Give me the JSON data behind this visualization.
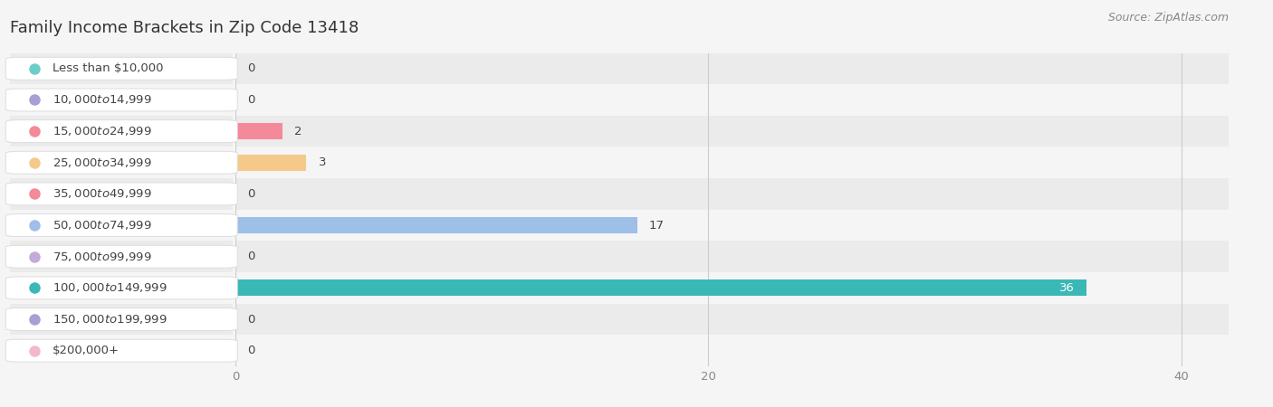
{
  "title": "Family Income Brackets in Zip Code 13418",
  "source_text": "Source: ZipAtlas.com",
  "categories": [
    "Less than $10,000",
    "$10,000 to $14,999",
    "$15,000 to $24,999",
    "$25,000 to $34,999",
    "$35,000 to $49,999",
    "$50,000 to $74,999",
    "$75,000 to $99,999",
    "$100,000 to $149,999",
    "$150,000 to $199,999",
    "$200,000+"
  ],
  "values": [
    0,
    0,
    2,
    3,
    0,
    17,
    0,
    36,
    0,
    0
  ],
  "bar_colors": [
    "#6dcdc8",
    "#a89fd4",
    "#f4899a",
    "#f5c98a",
    "#f4899a",
    "#9dbfe8",
    "#c3aad8",
    "#3ab8b8",
    "#a89fd4",
    "#f4b8c8"
  ],
  "background_color": "#f5f5f5",
  "row_bg_even": "#ebebeb",
  "row_bg_odd": "#f5f5f5",
  "xlim_max": 42,
  "xticks": [
    0,
    20,
    40
  ],
  "title_fontsize": 13,
  "label_fontsize": 9.5,
  "value_fontsize": 9.5,
  "source_fontsize": 9
}
